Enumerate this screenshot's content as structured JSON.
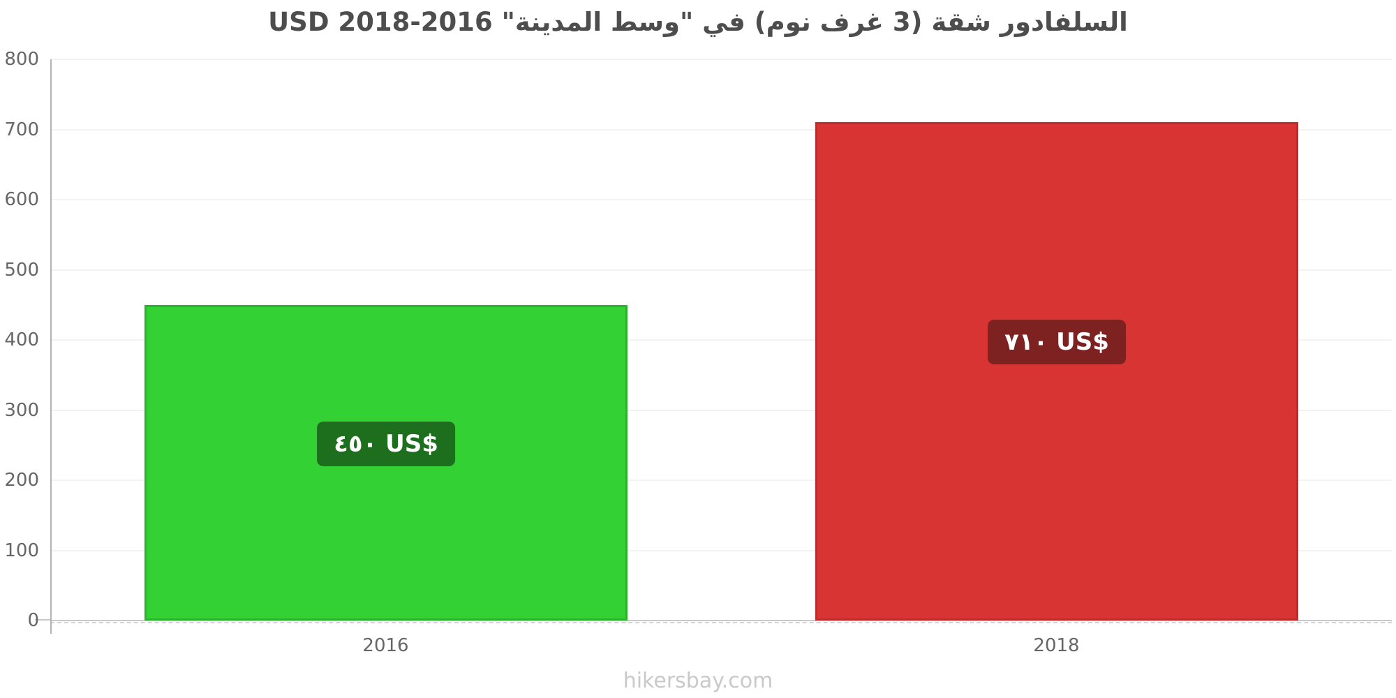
{
  "page": {
    "footer": "hikersbay.com"
  },
  "colors": {
    "title_text": "#4d4d4d",
    "axis_text": "#666666",
    "grid_line": "#f3f3f3",
    "baseline": "#c9c9c9",
    "axis_line": "#b3b3b3",
    "footer_text": "#c9c9c9"
  },
  "chart_data": {
    "type": "bar",
    "title": "السلفادور شقة (3 غرف نوم) في \"وسط المدينة\" 2016-2018 USD",
    "xlabel": "",
    "ylabel": "",
    "currency": "USD",
    "categories": [
      "2016",
      "2018"
    ],
    "values": [
      450,
      710
    ],
    "value_labels": [
      "٤٥٠ US$",
      "٧١٠ US$"
    ],
    "bar_colors": [
      "#33d133",
      "#d93434"
    ],
    "bar_border_colors": [
      "#2cb32c",
      "#c02c2c"
    ],
    "label_bg_colors": [
      "#1d6e1d",
      "#7d2121"
    ],
    "ylim": [
      0,
      800
    ],
    "yticks": [
      0,
      100,
      200,
      300,
      400,
      500,
      600,
      700,
      800
    ],
    "grid": true,
    "legend": false
  }
}
